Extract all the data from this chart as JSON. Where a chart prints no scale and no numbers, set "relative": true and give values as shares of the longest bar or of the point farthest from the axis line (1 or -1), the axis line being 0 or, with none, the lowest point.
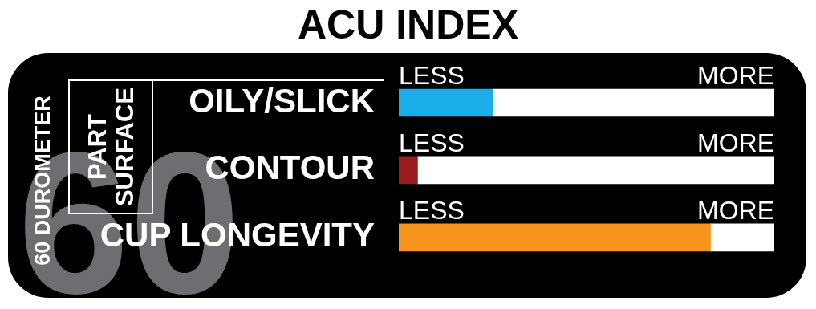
{
  "chart_data": {
    "type": "bar",
    "orientation": "horizontal",
    "title": "ACU INDEX",
    "relative": true,
    "stacked": true,
    "categories": [
      "OILY/SLICK",
      "CONTOUR",
      "CUP LONGEVITY"
    ],
    "series": [
      {
        "colors": [
          "#1aaee8",
          "#9b1c1c",
          "#f7941d"
        ],
        "values": [
          0.25,
          0.05,
          0.83
        ]
      },
      {
        "color": "#ffffff",
        "values": [
          0.75,
          0.95,
          0.17
        ]
      }
    ],
    "annotations": [
      "60 DUROMETER",
      "PART SURFACE",
      "60",
      "LESS",
      "MORE",
      "LESS",
      "MORE",
      "LESS",
      "MORE"
    ]
  }
}
